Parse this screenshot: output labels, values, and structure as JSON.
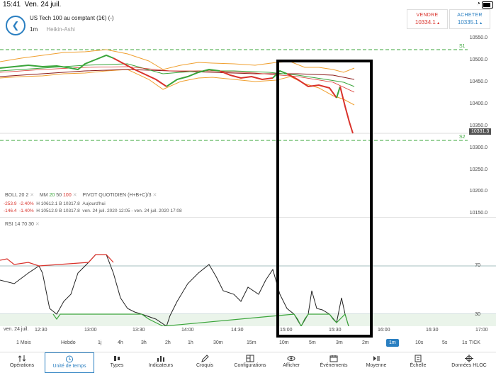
{
  "status": {
    "time": "15:41",
    "date": "Ven. 24 juil."
  },
  "header": {
    "instrument": "US Tech 100 au comptant (1€) (-)",
    "timeframe": "1m",
    "chart_style": "Heikin-Ashi",
    "sell_label": "VENDRE",
    "sell_price": "10334.1",
    "buy_label": "ACHETER",
    "buy_price": "10335.1"
  },
  "price_axis": [
    "10550.0",
    "10500.0",
    "10450.0",
    "10400.0",
    "10350.0",
    "10300.0",
    "10250.0",
    "10200.0",
    "10150.0"
  ],
  "current_price": "10331.3",
  "pivot_labels": {
    "s1": "S1",
    "s2": "S2"
  },
  "indicators": {
    "boll": {
      "name": "BOLL",
      "p1": "20",
      "p2": "2"
    },
    "mm": {
      "name": "MM",
      "p1": "20",
      "p2": "50",
      "p3": "100"
    },
    "pivot": {
      "name": "PIVOT",
      "type": "QUOTIDIEN",
      "formula": "(H+B+C)/3"
    },
    "row1": {
      "chg": "-253.9",
      "pct": "-2.40%",
      "hb": "H 10612.1   B 10317.8",
      "period": "Aujourd'hui"
    },
    "row2": {
      "chg": "-146.4",
      "pct": "-1.40%",
      "hb": "H 10512.9   B 10317.8",
      "period": "ven. 24 juil. 2020 12:05 - ven. 24 juil. 2020 17:08"
    },
    "rsi": {
      "name": "RSI",
      "p1": "14",
      "p2": "70",
      "p3": "30"
    }
  },
  "rsi_axis": {
    "high": "70",
    "low": "30"
  },
  "time_axis": {
    "date": "ven. 24 juil.",
    "ticks": [
      "12:30",
      "13:00",
      "13:30",
      "14:00",
      "14:30",
      "15:00",
      "15:30",
      "16:00",
      "16:30",
      "17:00"
    ]
  },
  "timeframes": [
    "1 Mois",
    "Hebdo",
    "1j",
    "4h",
    "3h",
    "2h",
    "1h",
    "30m",
    "15m",
    "10m",
    "5m",
    "3m",
    "2m",
    "1m",
    "10s",
    "5s",
    "1s",
    "TICK"
  ],
  "selected_timeframe": "1m",
  "tabs": [
    "Opérations",
    "Unité de temps",
    "Types",
    "Indicateurs",
    "Croquis",
    "Configurations",
    "Afficher",
    "Événements",
    "Moyenne",
    "Échelle",
    "Données HLOC"
  ],
  "colors": {
    "accent": "#2a7fc1",
    "down": "#d9322b",
    "up": "#3aa53a",
    "band": "#f0a030",
    "pivot": "#3aa53a"
  }
}
